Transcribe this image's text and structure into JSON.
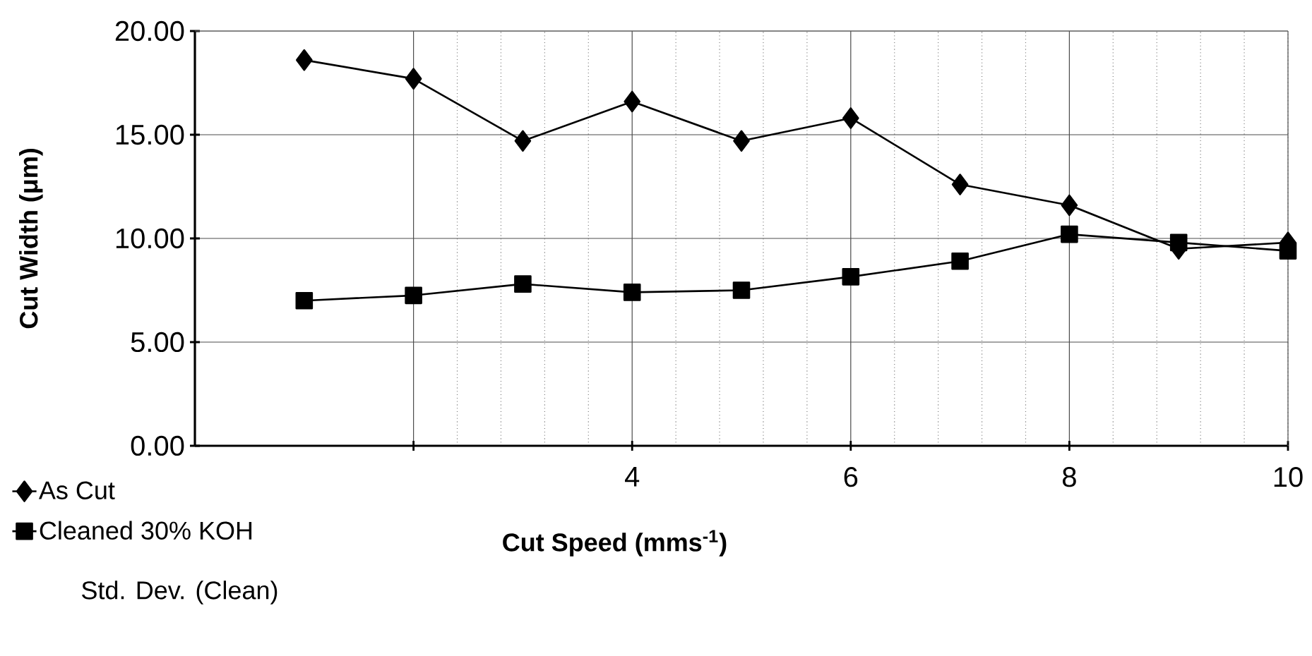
{
  "chart_data": {
    "type": "line",
    "xlabel": "Cut Speed (mms$^{-1}$)",
    "ylabel": "Cut Width (μm)",
    "x": [
      1,
      2,
      3,
      4,
      5,
      6,
      7,
      8,
      9,
      10
    ],
    "series": [
      {
        "name": "As Cut",
        "color": "#000000",
        "marker": "diamond",
        "values": [
          18.6,
          17.7,
          14.7,
          16.6,
          14.7,
          15.8,
          12.6,
          11.6,
          9.5,
          9.8
        ]
      },
      {
        "name": "Cleaned 30% KOH",
        "color": "#000000",
        "marker": "square",
        "values": [
          7.0,
          7.25,
          7.8,
          7.4,
          7.5,
          8.15,
          8.9,
          10.2,
          9.8,
          9.4
        ]
      }
    ],
    "xlim": [
      0,
      10
    ],
    "ylim": [
      0,
      20
    ],
    "xticks": [
      {
        "value": 2,
        "label": null
      },
      4,
      6,
      8,
      10
    ],
    "yticks": [
      {
        "value": 0,
        "label": "0.00"
      },
      {
        "value": 5,
        "label": "5.00"
      },
      {
        "value": 10,
        "label": "10.00"
      },
      {
        "value": 15,
        "label": "15.00"
      },
      {
        "value": 20,
        "label": "20.00"
      }
    ],
    "grid": true,
    "legend": "bottom left",
    "annotations": [
      "Std. Dev. (Clean)"
    ]
  }
}
